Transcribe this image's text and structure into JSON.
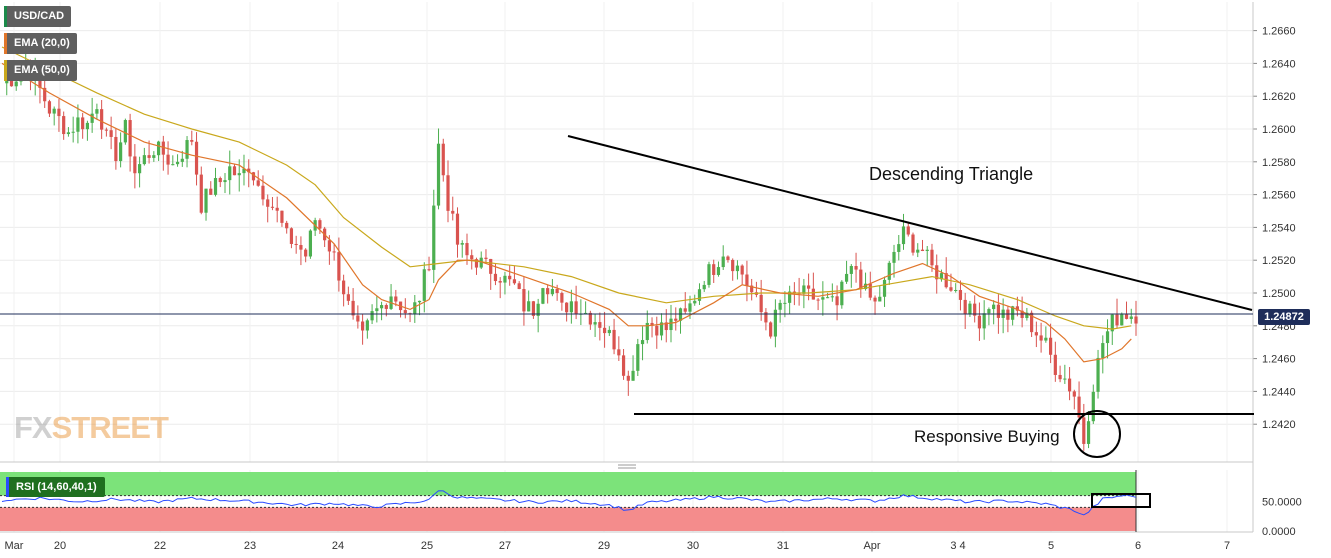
{
  "chart_data": [
    {
      "type": "candlestick",
      "symbol": "USD/CAD",
      "title": "USD/CAD",
      "indicators": [
        {
          "name": "EMA (20,0)",
          "color": "#e0762b"
        },
        {
          "name": "EMA (50,0)",
          "color": "#c9a81c"
        }
      ],
      "ylim": [
        1.24,
        1.2675
      ],
      "yticks": [
        "1.2420",
        "1.2440",
        "1.2460",
        "1.2480",
        "1.2500",
        "1.2520",
        "1.2540",
        "1.2560",
        "1.2580",
        "1.2600",
        "1.2620",
        "1.2640",
        "1.2660"
      ],
      "xticks": [
        "Mar",
        "20",
        "22",
        "23",
        "24",
        "25",
        "27",
        "29",
        "30",
        "31",
        "Apr",
        "3 4",
        "5",
        "6",
        "7"
      ],
      "last_price": "1.24872",
      "price_series": [
        [
          0,
          1.2628
        ],
        [
          3,
          1.2632
        ],
        [
          5,
          1.264
        ],
        [
          7,
          1.263
        ],
        [
          10,
          1.2612
        ],
        [
          12,
          1.2606
        ],
        [
          14,
          1.2598
        ],
        [
          16,
          1.2605
        ],
        [
          18,
          1.2603
        ],
        [
          20,
          1.2616
        ],
        [
          22,
          1.2594
        ],
        [
          24,
          1.2585
        ],
        [
          26,
          1.26
        ],
        [
          28,
          1.2574
        ],
        [
          30,
          1.2582
        ],
        [
          32,
          1.2588
        ],
        [
          34,
          1.2585
        ],
        [
          36,
          1.2578
        ],
        [
          38,
          1.2586
        ],
        [
          40,
          1.2594
        ],
        [
          42,
          1.2554
        ],
        [
          44,
          1.2563
        ],
        [
          46,
          1.2568
        ],
        [
          48,
          1.2576
        ],
        [
          50,
          1.257
        ],
        [
          52,
          1.2578
        ],
        [
          54,
          1.2566
        ],
        [
          56,
          1.2558
        ],
        [
          58,
          1.2548
        ],
        [
          60,
          1.2534
        ],
        [
          62,
          1.253
        ],
        [
          64,
          1.2523
        ],
        [
          66,
          1.2545
        ],
        [
          68,
          1.2535
        ],
        [
          70,
          1.2522
        ],
        [
          72,
          1.2502
        ],
        [
          74,
          1.2482
        ],
        [
          76,
          1.2472
        ],
        [
          78,
          1.2486
        ],
        [
          80,
          1.2492
        ],
        [
          82,
          1.25
        ],
        [
          84,
          1.2493
        ],
        [
          86,
          1.2485
        ],
        [
          88,
          1.2498
        ],
        [
          90,
          1.252
        ],
        [
          92,
          1.259
        ],
        [
          94,
          1.2555
        ],
        [
          96,
          1.253
        ],
        [
          98,
          1.2522
        ],
        [
          100,
          1.252
        ],
        [
          102,
          1.2516
        ],
        [
          104,
          1.2513
        ],
        [
          106,
          1.2508
        ],
        [
          108,
          1.2504
        ],
        [
          110,
          1.2492
        ],
        [
          112,
          1.249
        ],
        [
          114,
          1.2508
        ],
        [
          116,
          1.2502
        ],
        [
          118,
          1.249
        ],
        [
          120,
          1.2495
        ],
        [
          122,
          1.249
        ],
        [
          124,
          1.2486
        ],
        [
          126,
          1.2482
        ],
        [
          128,
          1.2474
        ],
        [
          130,
          1.2466
        ],
        [
          132,
          1.2445
        ],
        [
          134,
          1.247
        ],
        [
          136,
          1.2482
        ],
        [
          138,
          1.248
        ],
        [
          140,
          1.2478
        ],
        [
          142,
          1.2485
        ],
        [
          144,
          1.2486
        ],
        [
          146,
          1.2498
        ],
        [
          148,
          1.251
        ],
        [
          150,
          1.2516
        ],
        [
          152,
          1.2526
        ],
        [
          154,
          1.2519
        ],
        [
          156,
          1.2512
        ],
        [
          158,
          1.25
        ],
        [
          160,
          1.2488
        ],
        [
          162,
          1.2478
        ],
        [
          164,
          1.2492
        ],
        [
          166,
          1.2496
        ],
        [
          168,
          1.25
        ],
        [
          170,
          1.2498
        ],
        [
          172,
          1.2496
        ],
        [
          174,
          1.2494
        ],
        [
          176,
          1.2492
        ],
        [
          178,
          1.251
        ],
        [
          180,
          1.2515
        ],
        [
          182,
          1.25
        ],
        [
          184,
          1.2493
        ],
        [
          186,
          1.2505
        ],
        [
          188,
          1.2525
        ],
        [
          190,
          1.2536
        ],
        [
          192,
          1.253
        ],
        [
          194,
          1.2526
        ],
        [
          196,
          1.2515
        ],
        [
          198,
          1.251
        ],
        [
          200,
          1.2505
        ],
        [
          202,
          1.2498
        ],
        [
          204,
          1.2488
        ],
        [
          206,
          1.2484
        ],
        [
          208,
          1.2494
        ],
        [
          210,
          1.2488
        ],
        [
          212,
          1.2486
        ],
        [
          214,
          1.2488
        ],
        [
          216,
          1.2484
        ],
        [
          218,
          1.2476
        ],
        [
          220,
          1.2468
        ],
        [
          222,
          1.2455
        ],
        [
          224,
          1.2448
        ],
        [
          226,
          1.2438
        ],
        [
          228,
          1.241
        ],
        [
          230,
          1.2445
        ],
        [
          232,
          1.247
        ],
        [
          234,
          1.2482
        ],
        [
          236,
          1.2488
        ],
        [
          238,
          1.2487
        ]
      ],
      "ema20_series": [
        [
          0,
          1.264
        ],
        [
          10,
          1.2622
        ],
        [
          20,
          1.2606
        ],
        [
          30,
          1.2592
        ],
        [
          40,
          1.2584
        ],
        [
          50,
          1.2578
        ],
        [
          60,
          1.2558
        ],
        [
          70,
          1.253
        ],
        [
          76,
          1.2505
        ],
        [
          80,
          1.2496
        ],
        [
          86,
          1.249
        ],
        [
          90,
          1.2496
        ],
        [
          92,
          1.2508
        ],
        [
          96,
          1.252
        ],
        [
          100,
          1.252
        ],
        [
          110,
          1.251
        ],
        [
          120,
          1.25
        ],
        [
          128,
          1.249
        ],
        [
          132,
          1.248
        ],
        [
          136,
          1.248
        ],
        [
          142,
          1.2482
        ],
        [
          150,
          1.2494
        ],
        [
          156,
          1.2505
        ],
        [
          164,
          1.25
        ],
        [
          172,
          1.2498
        ],
        [
          180,
          1.2502
        ],
        [
          188,
          1.2512
        ],
        [
          194,
          1.2518
        ],
        [
          200,
          1.251
        ],
        [
          206,
          1.2498
        ],
        [
          214,
          1.249
        ],
        [
          220,
          1.2482
        ],
        [
          224,
          1.2472
        ],
        [
          228,
          1.2458
        ],
        [
          232,
          1.246
        ],
        [
          236,
          1.2466
        ],
        [
          238,
          1.2472
        ]
      ],
      "ema50_series": [
        [
          0,
          1.265
        ],
        [
          10,
          1.2636
        ],
        [
          20,
          1.2622
        ],
        [
          30,
          1.2609
        ],
        [
          40,
          1.26
        ],
        [
          50,
          1.2592
        ],
        [
          60,
          1.2578
        ],
        [
          66,
          1.2566
        ],
        [
          72,
          1.2546
        ],
        [
          80,
          1.2528
        ],
        [
          86,
          1.2516
        ],
        [
          92,
          1.2518
        ],
        [
          98,
          1.252
        ],
        [
          110,
          1.2516
        ],
        [
          120,
          1.251
        ],
        [
          130,
          1.25
        ],
        [
          140,
          1.2494
        ],
        [
          150,
          1.2498
        ],
        [
          160,
          1.25
        ],
        [
          170,
          1.25
        ],
        [
          180,
          1.2502
        ],
        [
          188,
          1.2506
        ],
        [
          196,
          1.251
        ],
        [
          204,
          1.2505
        ],
        [
          214,
          1.2496
        ],
        [
          222,
          1.2486
        ],
        [
          228,
          1.248
        ],
        [
          234,
          1.2478
        ],
        [
          238,
          1.248
        ]
      ],
      "annotations": [
        "Descending Triangle",
        "Responsive Buying"
      ]
    },
    {
      "type": "line",
      "title": "RSI (14,60,40,1)",
      "ylim": [
        0,
        100
      ],
      "yticks": [
        "0.0000",
        "50.0000"
      ],
      "levels": {
        "upper": 60,
        "lower": 40
      },
      "series": [
        [
          0,
          52
        ],
        [
          8,
          56
        ],
        [
          16,
          50
        ],
        [
          24,
          54
        ],
        [
          32,
          49
        ],
        [
          40,
          55
        ],
        [
          48,
          52
        ],
        [
          56,
          48
        ],
        [
          62,
          44
        ],
        [
          70,
          47
        ],
        [
          78,
          41
        ],
        [
          84,
          46
        ],
        [
          90,
          52
        ],
        [
          92,
          70
        ],
        [
          96,
          57
        ],
        [
          104,
          53
        ],
        [
          112,
          49
        ],
        [
          120,
          51
        ],
        [
          128,
          44
        ],
        [
          132,
          35
        ],
        [
          136,
          48
        ],
        [
          144,
          53
        ],
        [
          150,
          58
        ],
        [
          156,
          55
        ],
        [
          162,
          49
        ],
        [
          168,
          52
        ],
        [
          176,
          55
        ],
        [
          184,
          51
        ],
        [
          190,
          60
        ],
        [
          196,
          55
        ],
        [
          204,
          49
        ],
        [
          212,
          51
        ],
        [
          220,
          46
        ],
        [
          226,
          35
        ],
        [
          228,
          26
        ],
        [
          232,
          54
        ],
        [
          236,
          60
        ],
        [
          238,
          59
        ]
      ]
    }
  ],
  "watermark": {
    "left": "FX",
    "right": "STREET"
  },
  "legend": {
    "symbol": "USD/CAD",
    "ema20": "EMA (20,0)",
    "ema50": "EMA (50,0)",
    "rsi": "RSI (14,60,40,1)"
  },
  "annotations": {
    "triangle": "Descending Triangle",
    "buying": "Responsive Buying"
  },
  "price_tag": "1.24872",
  "colors": {
    "up": "#4caf50",
    "down": "#d9534f",
    "ema20": "#e0762b",
    "ema50": "#c9a81c",
    "rsi": "#2a4bff"
  }
}
